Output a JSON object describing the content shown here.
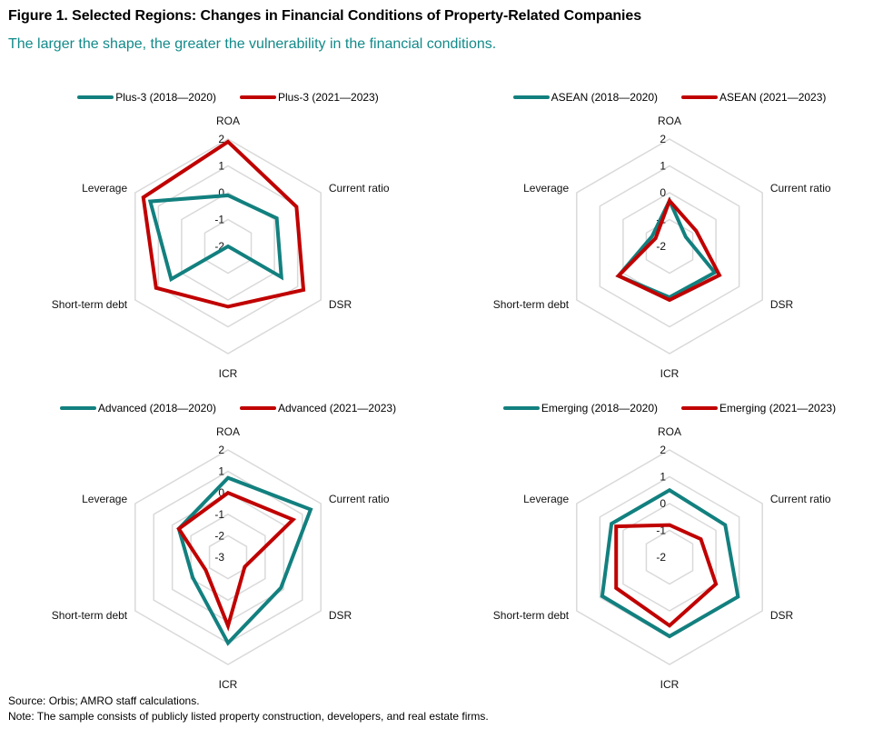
{
  "title": "Figure 1.  Selected Regions: Changes in Financial Conditions of Property-Related Companies",
  "subtitle": "The larger the shape, the greater the vulnerability in the financial conditions.",
  "source": "Source: Orbis; AMRO staff calculations.",
  "note": "Note: The sample consists of publicly listed property construction, developers, and real estate firms.",
  "colors": {
    "early": "#12807f",
    "late": "#c00000",
    "grid": "#d9d9d9"
  },
  "chart_data": [
    {
      "type": "radar",
      "name": "Plus-3",
      "axes": [
        "ROA",
        "Current ratio",
        "DSR",
        "ICR",
        "Short-term debt",
        "Leverage"
      ],
      "rlim": [
        -2,
        2
      ],
      "ticks": [
        2,
        1,
        0,
        -1,
        -2
      ],
      "grid": true,
      "legend_position": "top",
      "series": [
        {
          "name": "Plus-3 (2018—2020)",
          "values": [
            -0.1,
            0.1,
            0.3,
            -2.0,
            0.45,
            1.35
          ]
        },
        {
          "name": "Plus-3 (2021—2023)",
          "values": [
            1.9,
            0.95,
            1.25,
            0.25,
            1.1,
            1.65
          ]
        }
      ]
    },
    {
      "type": "radar",
      "name": "ASEAN",
      "axes": [
        "ROA",
        "Current ratio",
        "DSR",
        "ICR",
        "Short-term debt",
        "Leverage"
      ],
      "rlim": [
        -2,
        2
      ],
      "ticks": [
        2,
        1,
        0,
        -1,
        -2
      ],
      "grid": true,
      "legend_position": "top",
      "series": [
        {
          "name": "ASEAN (2018—2020)",
          "values": [
            -0.3,
            -1.3,
            -0.05,
            -0.1,
            0.2,
            -1.25
          ]
        },
        {
          "name": "ASEAN (2021—2023)",
          "values": [
            -0.3,
            -0.85,
            0.15,
            0.0,
            0.2,
            -1.4
          ]
        }
      ]
    },
    {
      "type": "radar",
      "name": "Advanced",
      "axes": [
        "ROA",
        "Current ratio",
        "DSR",
        "ICR",
        "Short-term debt",
        "Leverage"
      ],
      "rlim": [
        -3,
        2
      ],
      "ticks": [
        2,
        1,
        0,
        -1,
        -2,
        -3
      ],
      "grid": true,
      "legend_position": "top",
      "series": [
        {
          "name": "Advanced (2018—2020)",
          "values": [
            0.7,
            1.45,
            -0.15,
            1.0,
            -1.1,
            -0.35
          ]
        },
        {
          "name": "Advanced (2021—2023)",
          "values": [
            0.0,
            0.5,
            -2.1,
            0.2,
            -1.8,
            -0.35
          ]
        }
      ]
    },
    {
      "type": "radar",
      "name": "Emerging",
      "axes": [
        "ROA",
        "Current ratio",
        "DSR",
        "ICR",
        "Short-term debt",
        "Leverage"
      ],
      "rlim": [
        -2,
        2
      ],
      "ticks": [
        2,
        1,
        0,
        -1,
        -2
      ],
      "grid": true,
      "legend_position": "top",
      "series": [
        {
          "name": "Emerging (2018—2020)",
          "values": [
            0.5,
            0.4,
            0.95,
            0.95,
            0.9,
            0.5
          ]
        },
        {
          "name": "Emerging (2021—2023)",
          "values": [
            -0.8,
            -0.65,
            0.0,
            0.55,
            0.3,
            0.3
          ]
        }
      ]
    }
  ]
}
